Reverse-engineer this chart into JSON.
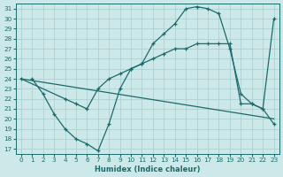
{
  "xlabel": "Humidex (Indice chaleur)",
  "bg_color": "#cde8e8",
  "grid_color": "#a8cccc",
  "line_color": "#1a6b6b",
  "xlim": [
    -0.5,
    23.5
  ],
  "ylim": [
    16.5,
    31.5
  ],
  "xticks": [
    0,
    1,
    2,
    3,
    4,
    5,
    6,
    7,
    8,
    9,
    10,
    11,
    12,
    13,
    14,
    15,
    16,
    17,
    18,
    19,
    20,
    21,
    22,
    23
  ],
  "yticks": [
    17,
    18,
    19,
    20,
    21,
    22,
    23,
    24,
    25,
    26,
    27,
    28,
    29,
    30,
    31
  ],
  "line1_x": [
    1,
    2,
    3,
    4,
    5,
    6,
    7,
    8,
    9,
    10,
    11,
    12,
    13,
    14,
    15,
    16,
    17,
    18,
    19,
    20,
    21,
    22,
    23
  ],
  "line1_y": [
    24.0,
    22.5,
    20.5,
    19.0,
    18.0,
    17.5,
    16.8,
    19.5,
    23.0,
    25.0,
    25.5,
    27.5,
    28.5,
    29.5,
    31.0,
    31.2,
    31.0,
    30.5,
    27.0,
    22.5,
    21.5,
    21.0,
    19.5
  ],
  "line2_x": [
    0,
    23
  ],
  "line2_y": [
    24.0,
    20.0
  ],
  "line3_x": [
    0,
    4,
    5,
    6,
    7,
    8,
    9,
    10,
    11,
    12,
    13,
    14,
    15,
    16,
    17,
    18,
    19,
    20,
    21,
    22,
    23
  ],
  "line3_y": [
    24.0,
    22.0,
    21.5,
    21.0,
    23.0,
    24.0,
    24.5,
    25.0,
    25.5,
    26.0,
    26.5,
    27.0,
    27.0,
    27.5,
    27.5,
    27.5,
    27.5,
    21.5,
    21.5,
    21.0,
    30.0
  ]
}
